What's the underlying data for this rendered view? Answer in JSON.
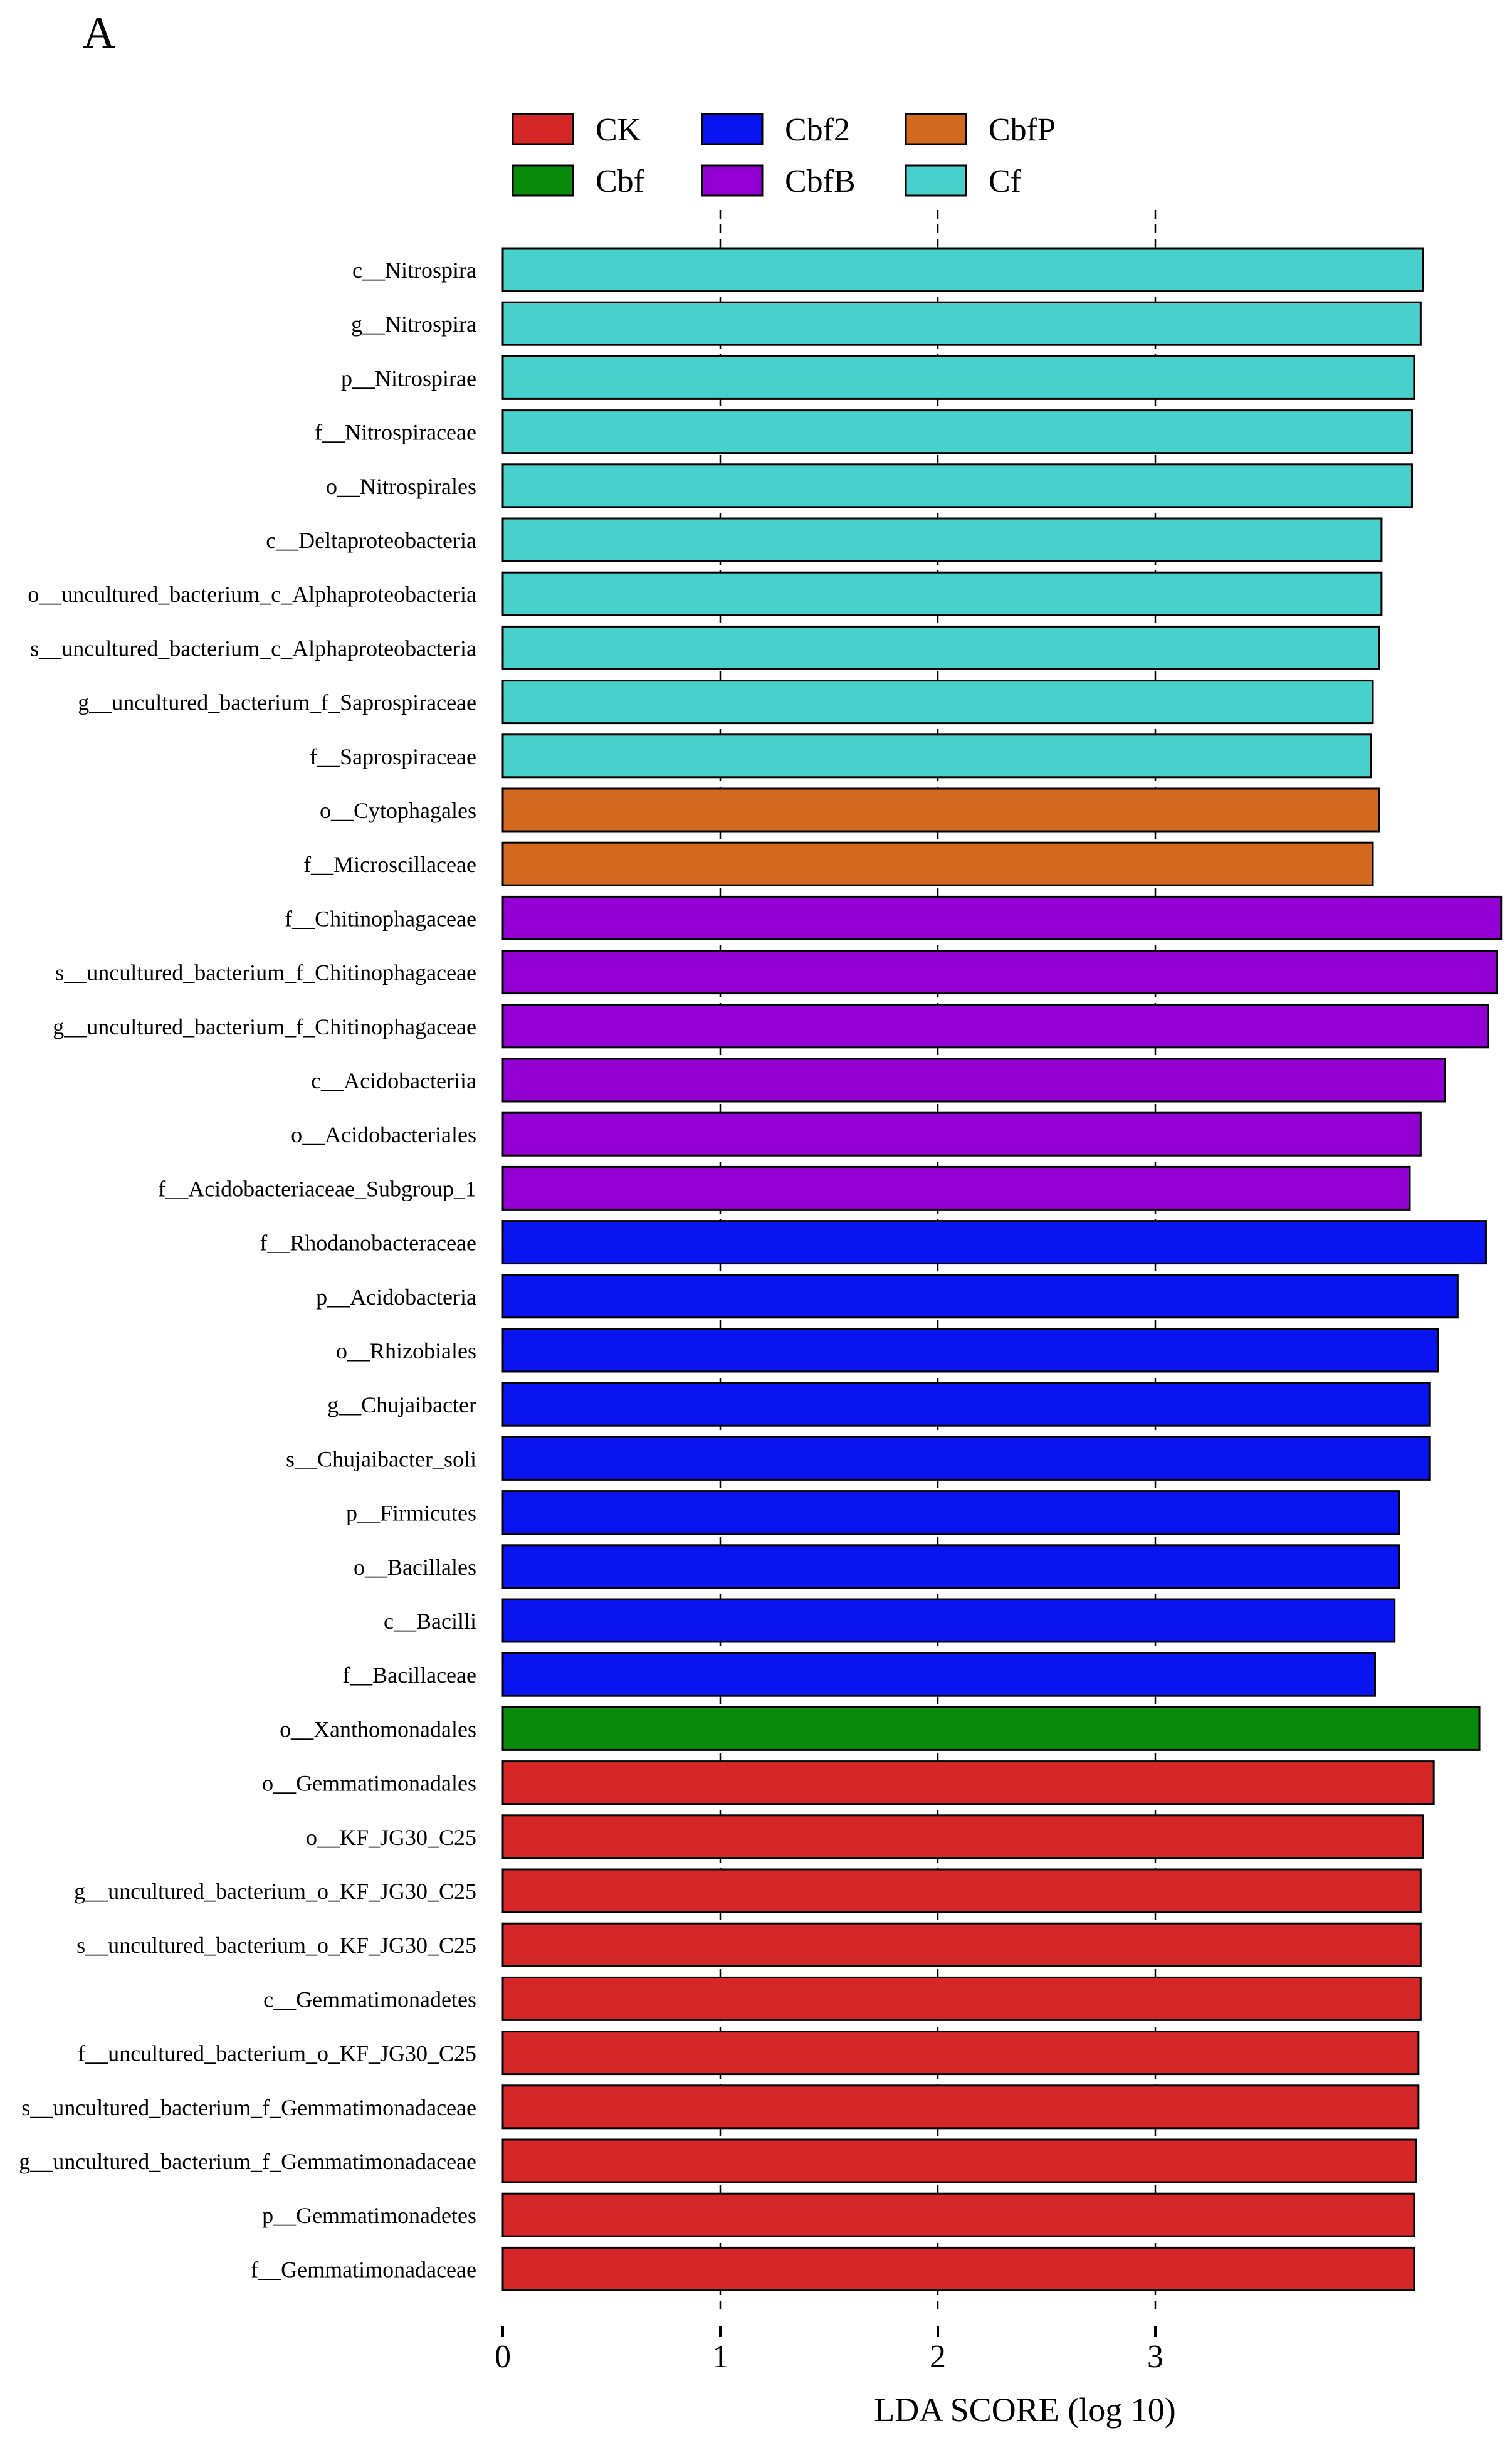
{
  "panel_label": "A",
  "colors": {
    "CK": "#d62728",
    "Cbf": "#0a8a0a",
    "Cbf2": "#0a14f0",
    "CbfB": "#9400d3",
    "CbfP": "#d2691e",
    "Cf": "#48d1cc"
  },
  "chart_data": {
    "type": "bar",
    "orientation": "horizontal",
    "title": "",
    "xlabel": "LDA SCORE (log 10)",
    "ylabel": "",
    "xlim": [
      0,
      4.6
    ],
    "xticks": [
      0,
      1,
      2,
      3
    ],
    "grid": "dashed vertical lines at 1, 2, 3",
    "legend": [
      {
        "name": "CK"
      },
      {
        "name": "Cbf2"
      },
      {
        "name": "CbfP"
      },
      {
        "name": "Cbf"
      },
      {
        "name": "CbfB"
      },
      {
        "name": "Cf"
      }
    ],
    "bars": [
      {
        "label": "c__Nitrospira",
        "value": 4.23,
        "group": "Cf"
      },
      {
        "label": "g__Nitrospira",
        "value": 4.22,
        "group": "Cf"
      },
      {
        "label": "p__Nitrospirae",
        "value": 4.19,
        "group": "Cf"
      },
      {
        "label": "f__Nitrospiraceae",
        "value": 4.18,
        "group": "Cf"
      },
      {
        "label": "o__Nitrospirales",
        "value": 4.18,
        "group": "Cf"
      },
      {
        "label": "c__Deltaproteobacteria",
        "value": 4.04,
        "group": "Cf"
      },
      {
        "label": "o__uncultured_bacterium_c_Alphaproteobacteria",
        "value": 4.04,
        "group": "Cf"
      },
      {
        "label": "s__uncultured_bacterium_c_Alphaproteobacteria",
        "value": 4.03,
        "group": "Cf"
      },
      {
        "label": "g__uncultured_bacterium_f_Saprospiraceae",
        "value": 4.0,
        "group": "Cf"
      },
      {
        "label": "f__Saprospiraceae",
        "value": 3.99,
        "group": "Cf"
      },
      {
        "label": "o__Cytophagales",
        "value": 4.03,
        "group": "CbfP"
      },
      {
        "label": "f__Microscillaceae",
        "value": 4.0,
        "group": "CbfP"
      },
      {
        "label": "f__Chitinophagaceae",
        "value": 4.59,
        "group": "CbfB"
      },
      {
        "label": "s__uncultured_bacterium_f_Chitinophagaceae",
        "value": 4.57,
        "group": "CbfB"
      },
      {
        "label": "g__uncultured_bacterium_f_Chitinophagaceae",
        "value": 4.53,
        "group": "CbfB"
      },
      {
        "label": "c__Acidobacteriia",
        "value": 4.33,
        "group": "CbfB"
      },
      {
        "label": "o__Acidobacteriales",
        "value": 4.22,
        "group": "CbfB"
      },
      {
        "label": "f__Acidobacteriaceae_Subgroup_1",
        "value": 4.17,
        "group": "CbfB"
      },
      {
        "label": "f__Rhodanobacteraceae",
        "value": 4.52,
        "group": "Cbf2"
      },
      {
        "label": "p__Acidobacteria",
        "value": 4.39,
        "group": "Cbf2"
      },
      {
        "label": "o__Rhizobiales",
        "value": 4.3,
        "group": "Cbf2"
      },
      {
        "label": "g__Chujaibacter",
        "value": 4.26,
        "group": "Cbf2"
      },
      {
        "label": "s__Chujaibacter_soli",
        "value": 4.26,
        "group": "Cbf2"
      },
      {
        "label": "p__Firmicutes",
        "value": 4.12,
        "group": "Cbf2"
      },
      {
        "label": "o__Bacillales",
        "value": 4.12,
        "group": "Cbf2"
      },
      {
        "label": "c__Bacilli",
        "value": 4.1,
        "group": "Cbf2"
      },
      {
        "label": "f__Bacillaceae",
        "value": 4.01,
        "group": "Cbf2"
      },
      {
        "label": "o__Xanthomonadales",
        "value": 4.49,
        "group": "Cbf"
      },
      {
        "label": "o__Gemmatimonadales",
        "value": 4.28,
        "group": "CK"
      },
      {
        "label": "o__KF_JG30_C25",
        "value": 4.23,
        "group": "CK"
      },
      {
        "label": "g__uncultured_bacterium_o_KF_JG30_C25",
        "value": 4.22,
        "group": "CK"
      },
      {
        "label": "s__uncultured_bacterium_o_KF_JG30_C25",
        "value": 4.22,
        "group": "CK"
      },
      {
        "label": "c__Gemmatimonadetes",
        "value": 4.22,
        "group": "CK"
      },
      {
        "label": "f__uncultured_bacterium_o_KF_JG30_C25",
        "value": 4.21,
        "group": "CK"
      },
      {
        "label": "s__uncultured_bacterium_f_Gemmatimonadaceae",
        "value": 4.21,
        "group": "CK"
      },
      {
        "label": "g__uncultured_bacterium_f_Gemmatimonadaceae",
        "value": 4.2,
        "group": "CK"
      },
      {
        "label": "p__Gemmatimonadetes",
        "value": 4.19,
        "group": "CK"
      },
      {
        "label": "f__Gemmatimonadaceae",
        "value": 4.19,
        "group": "CK"
      }
    ]
  }
}
